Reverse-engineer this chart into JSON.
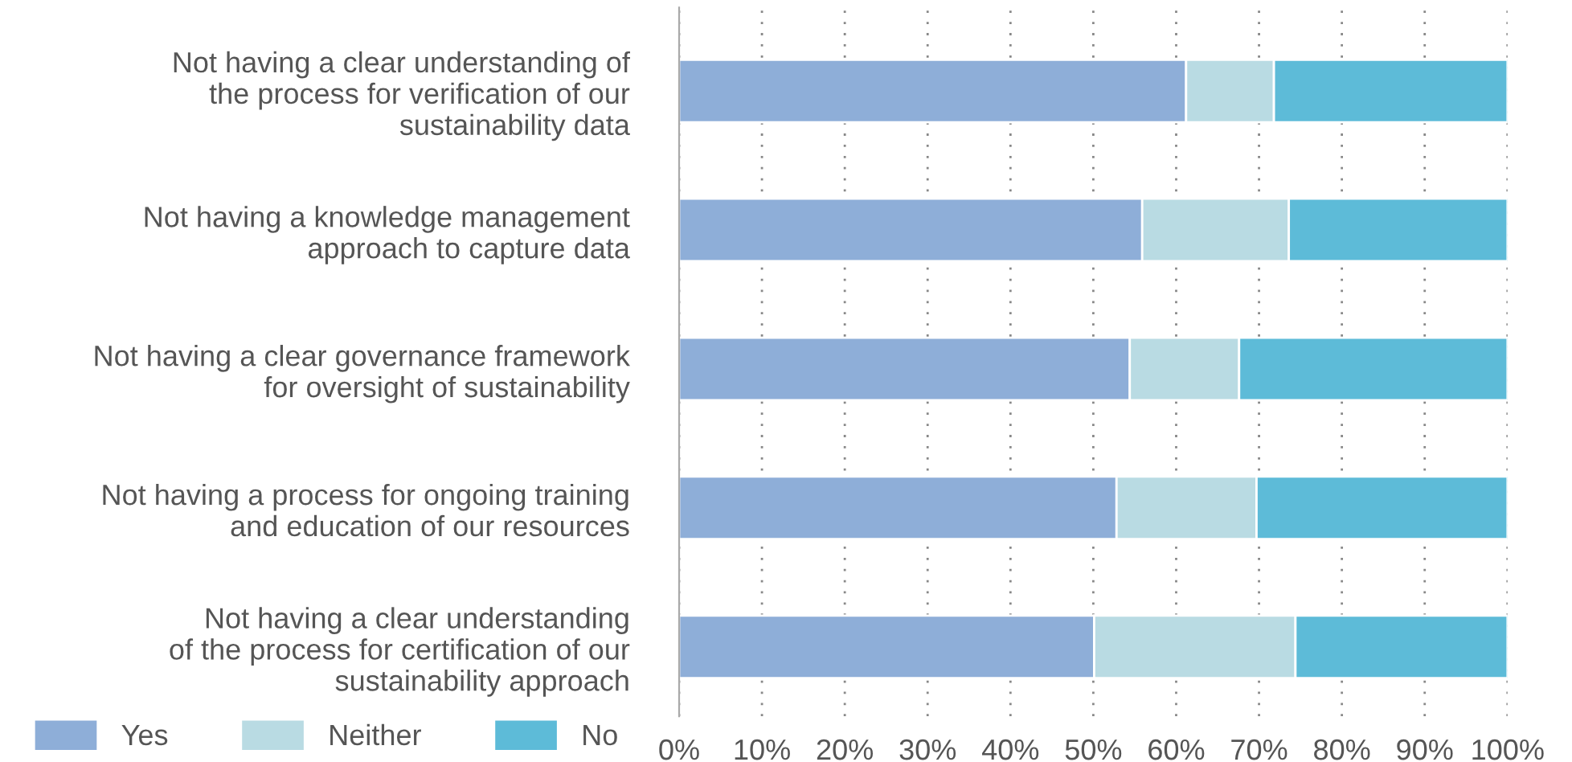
{
  "chart_data": {
    "type": "bar",
    "orientation": "horizontal",
    "stacked": true,
    "categories": [
      "Not having a clear understanding of\nthe process for verification of our\nsustainability data",
      "Not having a knowledge management\napproach to capture data",
      "Not having a clear governance framework\nfor oversight of sustainability",
      "Not having a process for ongoing training\nand education of our resources",
      "Not having a clear understanding\nof the process for certification of our\nsustainability approach"
    ],
    "series": [
      {
        "name": "Yes",
        "color": "#8eaed8",
        "values": [
          61.2,
          55.9,
          54.4,
          52.8,
          50.1
        ]
      },
      {
        "name": "Neither",
        "color": "#b9dbe3",
        "values": [
          10.6,
          17.7,
          13.2,
          16.9,
          24.3
        ]
      },
      {
        "name": "No",
        "color": "#5dbbd8",
        "values": [
          28.2,
          26.4,
          32.4,
          30.3,
          25.6
        ]
      }
    ],
    "xlim": [
      0,
      100
    ],
    "xticks": [
      {
        "value": 0,
        "label": "0%"
      },
      {
        "value": 10,
        "label": "10%"
      },
      {
        "value": 20,
        "label": "20%"
      },
      {
        "value": 30,
        "label": "30%"
      },
      {
        "value": 40,
        "label": "40%"
      },
      {
        "value": 50,
        "label": "50%"
      },
      {
        "value": 60,
        "label": "60%"
      },
      {
        "value": 70,
        "label": "70%"
      },
      {
        "value": 80,
        "label": "80%"
      },
      {
        "value": 90,
        "label": "90%"
      },
      {
        "value": 100,
        "label": "100%"
      }
    ],
    "grid": "x",
    "legend": "bottom left"
  }
}
